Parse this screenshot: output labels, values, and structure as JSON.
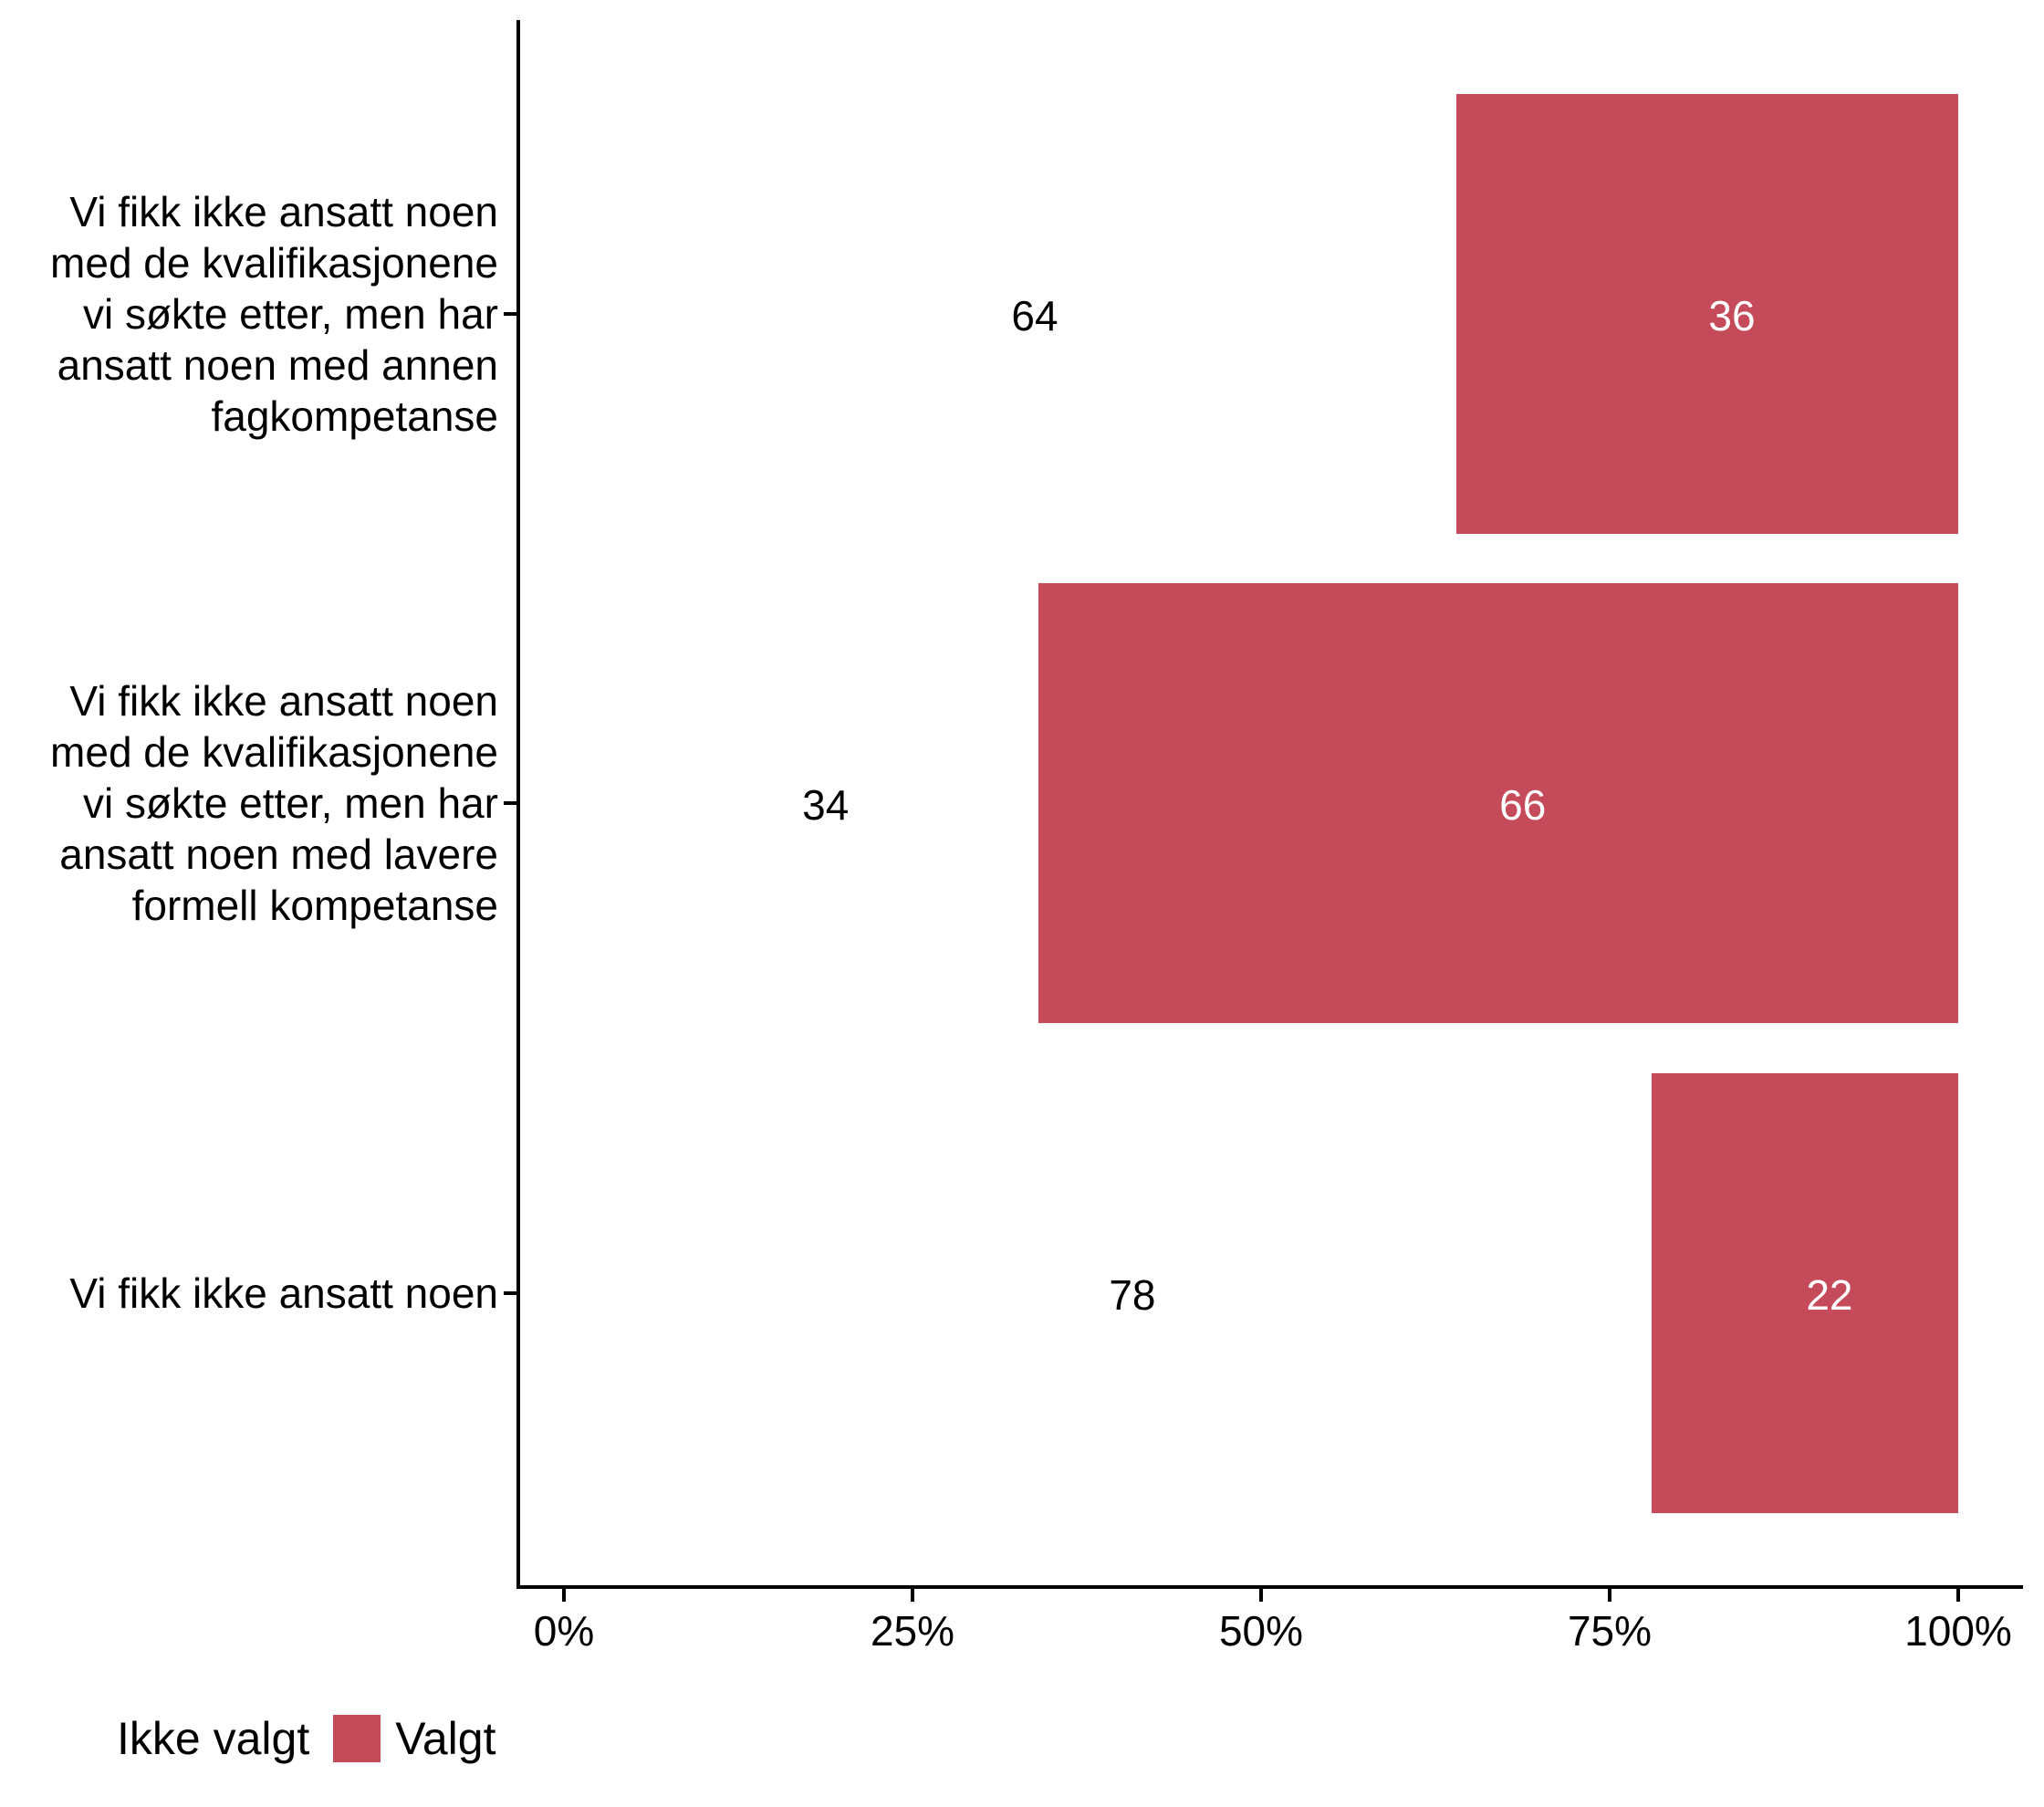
{
  "chart_data": {
    "type": "bar",
    "orientation": "horizontal",
    "stacked": true,
    "title": "",
    "xlabel": "",
    "ylabel": "",
    "grid": false,
    "x_axis": {
      "min": 0,
      "max": 100,
      "tick_values": [
        0,
        25,
        50,
        75,
        100
      ],
      "tick_labels": [
        "0%",
        "25%",
        "50%",
        "75%",
        "100%"
      ]
    },
    "categories": [
      {
        "label_lines": [
          "Vi fikk ikke ansatt noen",
          "med de kvalifikasjonene",
          "vi søkte etter, men har",
          "ansatt noen med annen",
          "fagkompetanse"
        ]
      },
      {
        "label_lines": [
          "Vi fikk ikke ansatt noen",
          "med de kvalifikasjonene",
          "vi søkte etter, men har",
          "ansatt noen med lavere",
          "formell kompetanse"
        ]
      },
      {
        "label_lines": [
          "Vi fikk ikke ansatt noen"
        ]
      }
    ],
    "series": [
      {
        "name": "Ikke valgt",
        "color": "#ffffff",
        "label_color": "#000000",
        "values": [
          64,
          34,
          78
        ]
      },
      {
        "name": "Valgt",
        "color": "#c64b5a",
        "label_color": "#ffffff",
        "values": [
          36,
          66,
          22
        ]
      }
    ],
    "legend": {
      "position": "bottom-left",
      "items": [
        {
          "label": "Ikke valgt",
          "color": "#ffffff"
        },
        {
          "label": "Valgt",
          "color": "#c64b5a"
        }
      ]
    }
  },
  "colors": {
    "background": "#ffffff",
    "axis": "#000000",
    "text": "#000000",
    "accent": "#c64b5a"
  }
}
